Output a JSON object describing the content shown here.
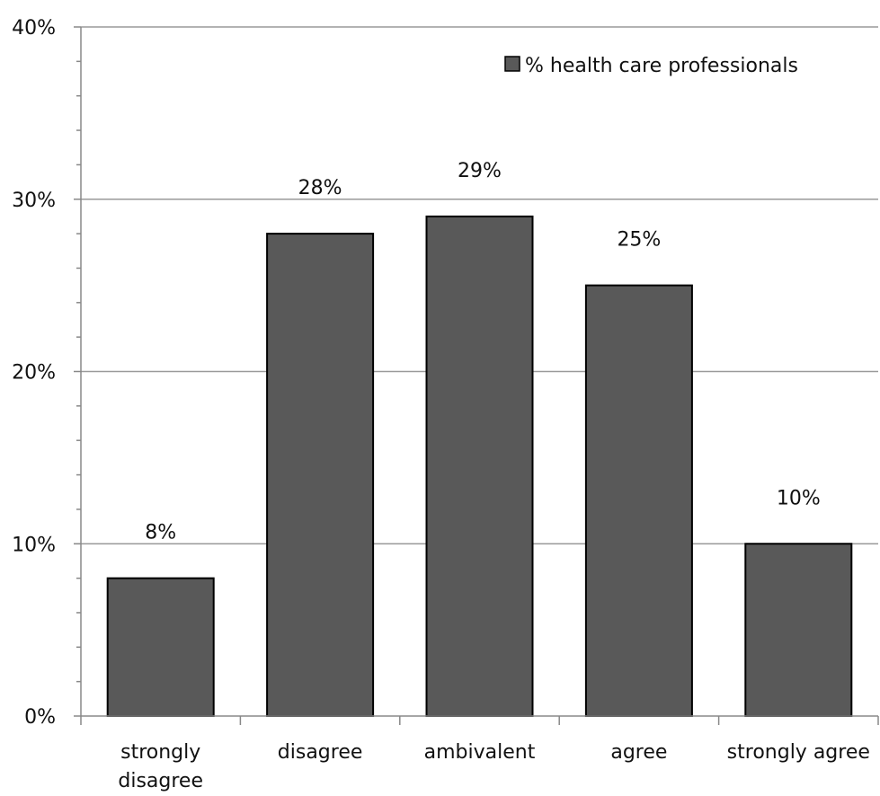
{
  "chart_data": {
    "type": "bar",
    "categories": [
      [
        "strongly",
        "disagree"
      ],
      [
        "disagree"
      ],
      [
        "ambivalent"
      ],
      [
        "agree"
      ],
      [
        "strongly agree"
      ]
    ],
    "series": [
      {
        "name": "% health care professionals",
        "values": [
          8,
          28,
          29,
          25,
          10
        ],
        "data_labels": [
          "8%",
          "28%",
          "29%",
          "25%",
          "10%"
        ],
        "color": "#595959"
      }
    ],
    "ylim": [
      0,
      40
    ],
    "yticks": [
      0,
      10,
      20,
      30,
      40
    ],
    "ytick_labels": [
      "0%",
      "10%",
      "20%",
      "30%",
      "40%"
    ],
    "minor_ticks_per_major": 5,
    "grid": true,
    "legend": "top-right",
    "grid_color": "#9a9a9a",
    "axis_color": "#888888",
    "bar_edge_color": "#000000"
  }
}
